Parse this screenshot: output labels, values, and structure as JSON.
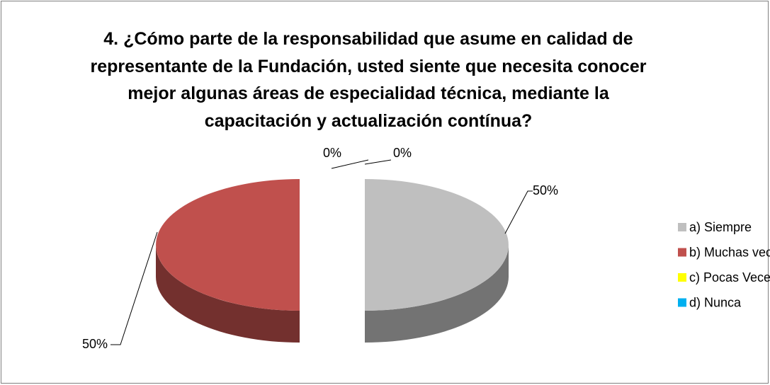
{
  "chart_data": {
    "type": "pie3d",
    "title": "4. ¿Cómo parte de la responsabilidad que asume en calidad de representante de la Fundación, usted siente que necesita conocer mejor algunas áreas de especialidad técnica, mediante la capacitación y actualización contínua?",
    "categories": [
      "a) Siempre",
      "b) Muchas veces",
      "c) Pocas Veces",
      "d) Nunca"
    ],
    "values": [
      50,
      50,
      0,
      0
    ],
    "value_labels": [
      "50%",
      "50%",
      "0%",
      "0%"
    ],
    "colors": [
      "#bfbfbf",
      "#c0504d",
      "#ffff00",
      "#00b0f0"
    ],
    "legend": "right"
  }
}
